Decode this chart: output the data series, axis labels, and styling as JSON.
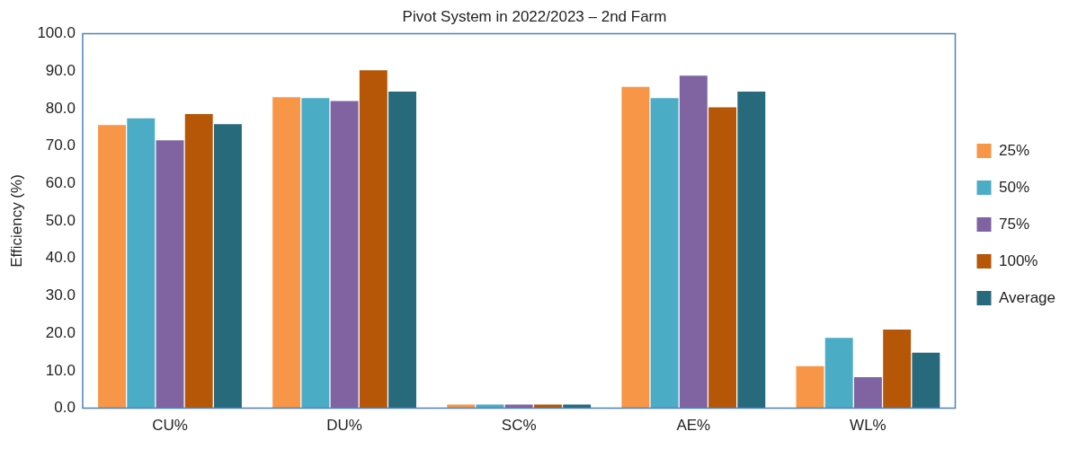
{
  "chart_data": {
    "type": "bar",
    "title": "Pivot System in 2022/2023 – 2nd Farm",
    "ylabel": "Efficiency (%)",
    "categories": [
      "CU%",
      "DU%",
      "SC%",
      "AE%",
      "WL%"
    ],
    "series": [
      {
        "name": "25%",
        "color": "#f79646",
        "values": [
          75.6,
          83,
          1,
          85.8,
          11.2
        ]
      },
      {
        "name": "50%",
        "color": "#4bacc6",
        "values": [
          77.4,
          82.8,
          1,
          82.8,
          18.8
        ]
      },
      {
        "name": "75%",
        "color": "#8064a2",
        "values": [
          71.5,
          82,
          1,
          88.8,
          8.3
        ]
      },
      {
        "name": "100%",
        "color": "#b65708",
        "values": [
          78.5,
          90.2,
          1,
          80.3,
          21
        ]
      },
      {
        "name": "Average",
        "color": "#276a7c",
        "values": [
          75.8,
          84.5,
          1,
          84.5,
          14.8
        ]
      }
    ],
    "ylim": [
      0,
      100
    ],
    "yticks": [
      {
        "value": 0,
        "label": "0.0"
      },
      {
        "value": 10,
        "label": "10.0"
      },
      {
        "value": 20,
        "label": "20.0"
      },
      {
        "value": 30,
        "label": "30.0"
      },
      {
        "value": 40,
        "label": "40.0"
      },
      {
        "value": 50,
        "label": "50.0"
      },
      {
        "value": 60,
        "label": "60.0"
      },
      {
        "value": 70,
        "label": "70.0"
      },
      {
        "value": 80,
        "label": "80.0"
      },
      {
        "value": 90,
        "label": "90.0"
      },
      {
        "value": 100,
        "label": "100.0"
      }
    ],
    "grid": false,
    "legend": "right"
  }
}
